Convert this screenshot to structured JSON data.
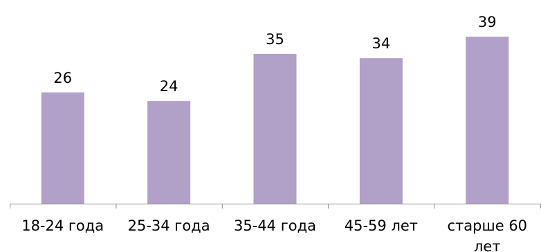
{
  "chart_data": {
    "type": "bar",
    "categories": [
      "18-24 года",
      "25-34 года",
      "35-44 года",
      "45-59 лет",
      "старше 60 лет"
    ],
    "values": [
      26,
      24,
      35,
      34,
      39
    ],
    "ylim": [
      0,
      40
    ],
    "grid": false,
    "bar_color": "#b1a0c7",
    "axis_color": "#888888",
    "text_color": "#000000"
  }
}
